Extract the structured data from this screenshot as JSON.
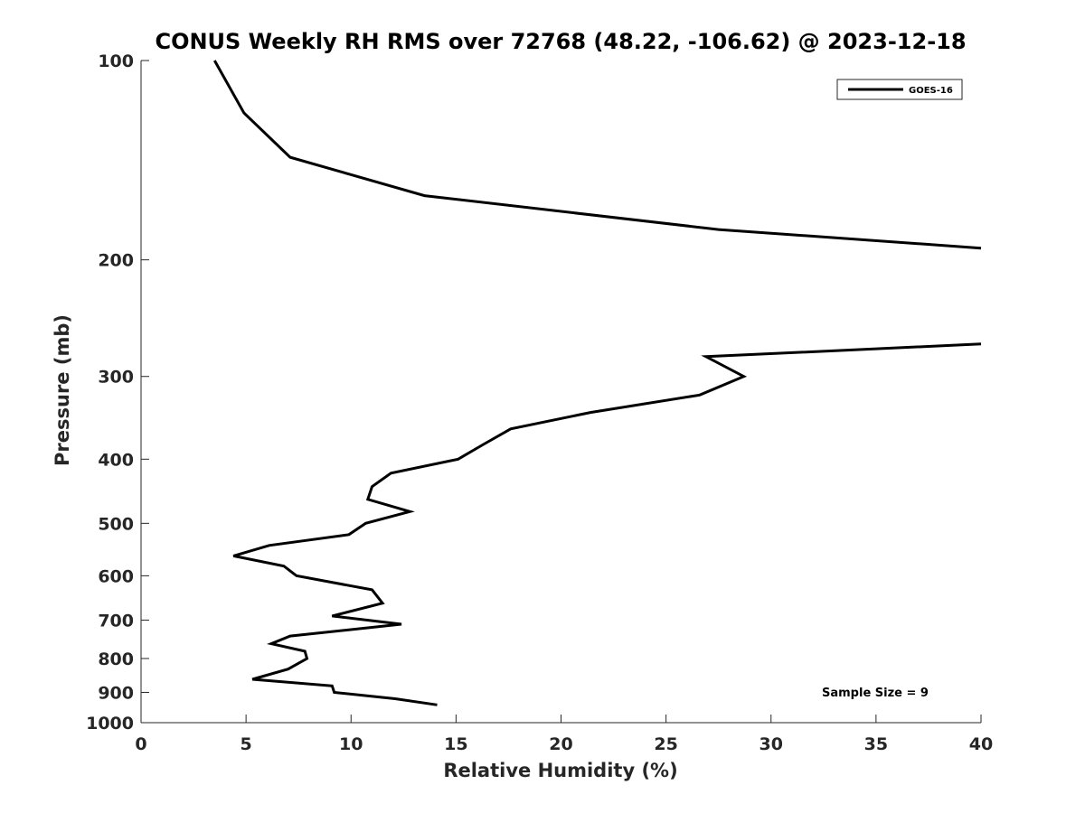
{
  "chart_data": {
    "type": "line",
    "title": "CONUS Weekly RH RMS over 72768 (48.22, -106.62) @ 2023-12-18",
    "xlabel": "Relative Humidity (%)",
    "ylabel": "Pressure (mb)",
    "xlim": [
      0,
      40
    ],
    "ylim": [
      1000,
      100
    ],
    "y_scale": "log",
    "y_inverted": true,
    "grid": false,
    "legend_position": "top-right",
    "x_ticks": [
      "0",
      "5",
      "10",
      "15",
      "20",
      "25",
      "30",
      "35",
      "40"
    ],
    "y_ticks": [
      "100",
      "200",
      "300",
      "400",
      "500",
      "600",
      "700",
      "800",
      "900",
      "1000"
    ],
    "annotation": "Sample Size = 9",
    "series": [
      {
        "name": "GOES-16",
        "color": "#000000",
        "segments": [
          [
            [
              3.5,
              100
            ],
            [
              4.9,
              120
            ],
            [
              7.1,
              140
            ],
            [
              13.5,
              160
            ],
            [
              27.5,
              180
            ],
            [
              40,
              192
            ]
          ],
          [
            [
              40,
              268
            ],
            [
              26.9,
              280
            ],
            [
              28.7,
              300
            ],
            [
              26.6,
              320
            ],
            [
              21.4,
              340
            ],
            [
              17.6,
              360
            ],
            [
              16.3,
              380
            ],
            [
              15.1,
              400
            ],
            [
              11.9,
              420
            ],
            [
              11.0,
              440
            ],
            [
              10.8,
              460
            ],
            [
              12.8,
              480
            ],
            [
              10.7,
              500
            ],
            [
              9.9,
              520
            ],
            [
              6.1,
              540
            ],
            [
              4.4,
              560
            ],
            [
              6.8,
              580
            ],
            [
              7.4,
              600
            ],
            [
              11.0,
              630
            ],
            [
              11.5,
              660
            ],
            [
              9.1,
              690
            ],
            [
              12.4,
              710
            ],
            [
              7.1,
              740
            ],
            [
              6.2,
              760
            ],
            [
              7.8,
              780
            ],
            [
              7.9,
              800
            ],
            [
              7.0,
              830
            ],
            [
              5.3,
              860
            ],
            [
              9.1,
              880
            ],
            [
              9.2,
              900
            ],
            [
              12.1,
              920
            ],
            [
              14.1,
              940
            ]
          ]
        ]
      }
    ]
  }
}
